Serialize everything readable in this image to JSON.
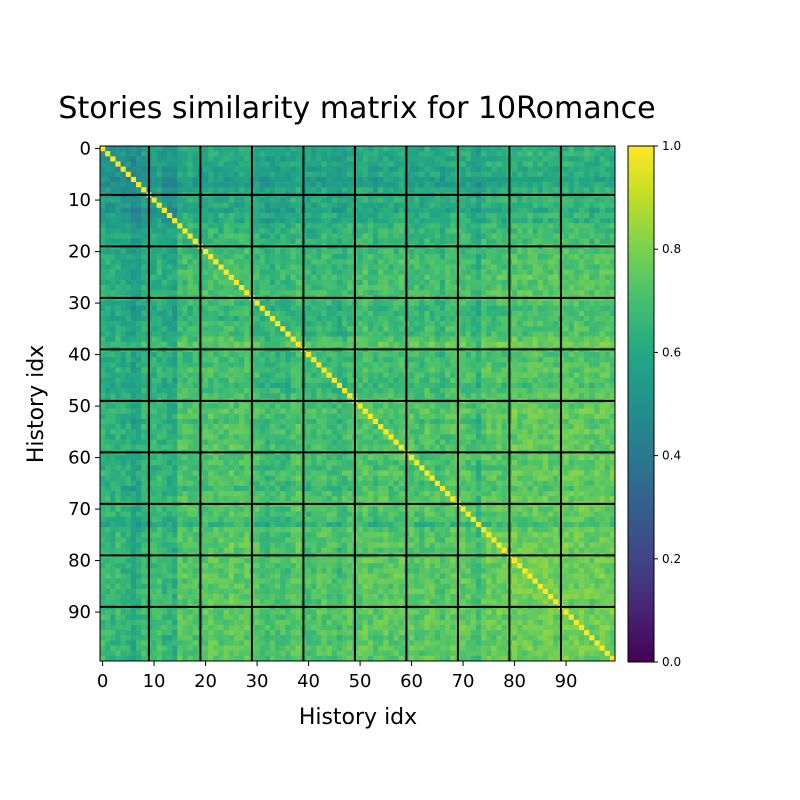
{
  "chart_data": {
    "type": "heatmap",
    "title": "Stories similarity matrix for 10Romance",
    "xlabel": "History idx",
    "ylabel": "History idx",
    "n": 100,
    "x_ticks": [
      0,
      10,
      20,
      30,
      40,
      50,
      60,
      70,
      80,
      90
    ],
    "y_ticks": [
      0,
      10,
      20,
      30,
      40,
      50,
      60,
      70,
      80,
      90
    ],
    "block_size": 10,
    "separator_color": "#000000",
    "colormap": "viridis",
    "vmin": 0.0,
    "vmax": 1.0,
    "colorbar_ticks": [
      "0.0",
      "0.2",
      "0.4",
      "0.6",
      "0.8",
      "1.0"
    ],
    "diagonal_value": 1.0,
    "typical_value_range": [
      0.45,
      0.9
    ],
    "row_mean_similarity": [
      0.5,
      0.52,
      0.48,
      0.5,
      0.45,
      0.5,
      0.4,
      0.42,
      0.5,
      0.5,
      0.55,
      0.5,
      0.45,
      0.55,
      0.5,
      0.6,
      0.6,
      0.62,
      0.6,
      0.65,
      0.65,
      0.66,
      0.68,
      0.65,
      0.68,
      0.7,
      0.66,
      0.68,
      0.7,
      0.7,
      0.65,
      0.6,
      0.62,
      0.6,
      0.65,
      0.66,
      0.64,
      0.72,
      0.78,
      0.7,
      0.66,
      0.65,
      0.66,
      0.7,
      0.68,
      0.66,
      0.62,
      0.66,
      0.7,
      0.72,
      0.72,
      0.75,
      0.74,
      0.68,
      0.72,
      0.74,
      0.7,
      0.72,
      0.74,
      0.72,
      0.72,
      0.7,
      0.68,
      0.74,
      0.72,
      0.7,
      0.66,
      0.72,
      0.74,
      0.74,
      0.74,
      0.72,
      0.7,
      0.6,
      0.74,
      0.75,
      0.76,
      0.78,
      0.74,
      0.76,
      0.78,
      0.76,
      0.74,
      0.78,
      0.76,
      0.76,
      0.78,
      0.76,
      0.76,
      0.76,
      0.78,
      0.76,
      0.76,
      0.78,
      0.76,
      0.74,
      0.76,
      0.78,
      0.76,
      0.76
    ],
    "column_mean_similarity": [
      0.6,
      0.58,
      0.56,
      0.58,
      0.55,
      0.55,
      0.45,
      0.5,
      0.6,
      0.55,
      0.6,
      0.62,
      0.56,
      0.55,
      0.5,
      0.72,
      0.7,
      0.7,
      0.68,
      0.66,
      0.72,
      0.74,
      0.72,
      0.7,
      0.72,
      0.75,
      0.7,
      0.72,
      0.74,
      0.7,
      0.7,
      0.65,
      0.62,
      0.64,
      0.66,
      0.66,
      0.64,
      0.7,
      0.74,
      0.66,
      0.66,
      0.65,
      0.68,
      0.7,
      0.68,
      0.66,
      0.62,
      0.66,
      0.72,
      0.7,
      0.72,
      0.75,
      0.72,
      0.68,
      0.72,
      0.74,
      0.7,
      0.72,
      0.74,
      0.72,
      0.72,
      0.7,
      0.68,
      0.74,
      0.72,
      0.7,
      0.66,
      0.72,
      0.74,
      0.74,
      0.74,
      0.72,
      0.7,
      0.6,
      0.74,
      0.76,
      0.76,
      0.78,
      0.74,
      0.76,
      0.8,
      0.78,
      0.76,
      0.8,
      0.78,
      0.78,
      0.8,
      0.78,
      0.78,
      0.78,
      0.8,
      0.78,
      0.78,
      0.8,
      0.78,
      0.76,
      0.78,
      0.8,
      0.78,
      0.78
    ]
  }
}
